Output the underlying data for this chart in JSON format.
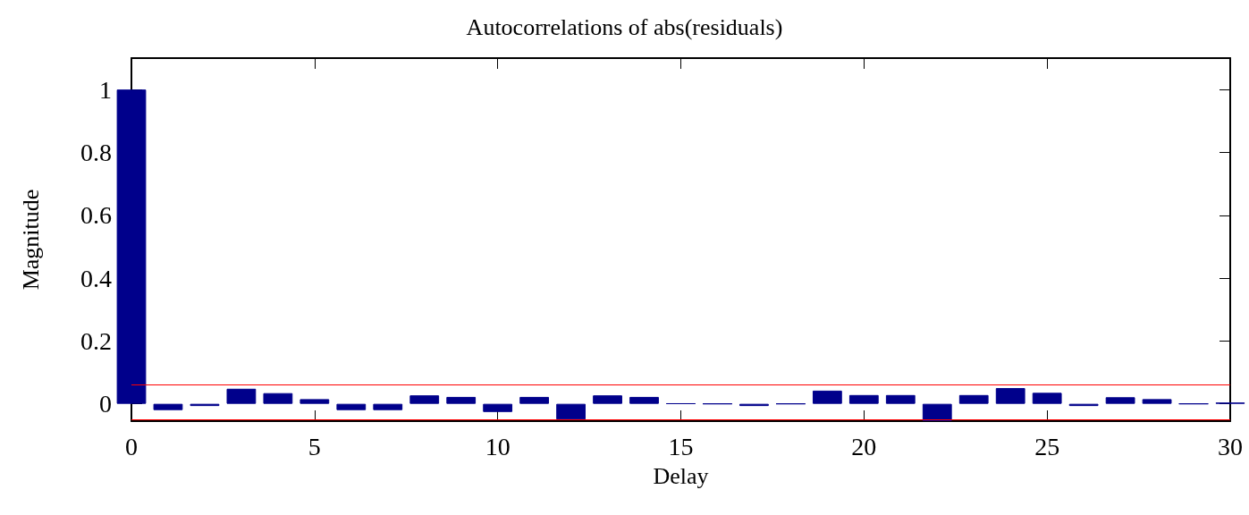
{
  "chart_data": {
    "type": "bar",
    "title": "Autocorrelations of abs(residuals)",
    "xlabel": "Delay",
    "ylabel": "Magnitude",
    "x": [
      0,
      1,
      2,
      3,
      4,
      5,
      6,
      7,
      8,
      9,
      10,
      11,
      12,
      13,
      14,
      15,
      16,
      17,
      18,
      19,
      20,
      21,
      22,
      23,
      24,
      25,
      26,
      27,
      28,
      29,
      30
    ],
    "values": [
      1,
      -0.02,
      -0.007,
      0.048,
      0.034,
      0.015,
      -0.02,
      -0.02,
      0.027,
      0.022,
      -0.026,
      0.022,
      -0.05,
      0.027,
      0.022,
      0.001,
      0,
      -0.007,
      0,
      0.042,
      0.028,
      0.028,
      -0.055,
      0.028,
      0.05,
      0.035,
      -0.007,
      0.021,
      0.015,
      0,
      0.004
    ],
    "color": "#00008b",
    "xlim": [
      0,
      30
    ],
    "xticks": [
      0,
      5,
      10,
      15,
      20,
      25,
      30
    ],
    "ylim": [
      -0.055,
      1.1
    ],
    "yticks": [
      0,
      0.2,
      0.4,
      0.6,
      0.8,
      1
    ],
    "ref_lines": [
      {
        "axis": "y",
        "value": 0.06,
        "color": "#ff0000"
      },
      {
        "axis": "y",
        "value": -0.05,
        "color": "#ff0000"
      }
    ],
    "grid": false
  }
}
